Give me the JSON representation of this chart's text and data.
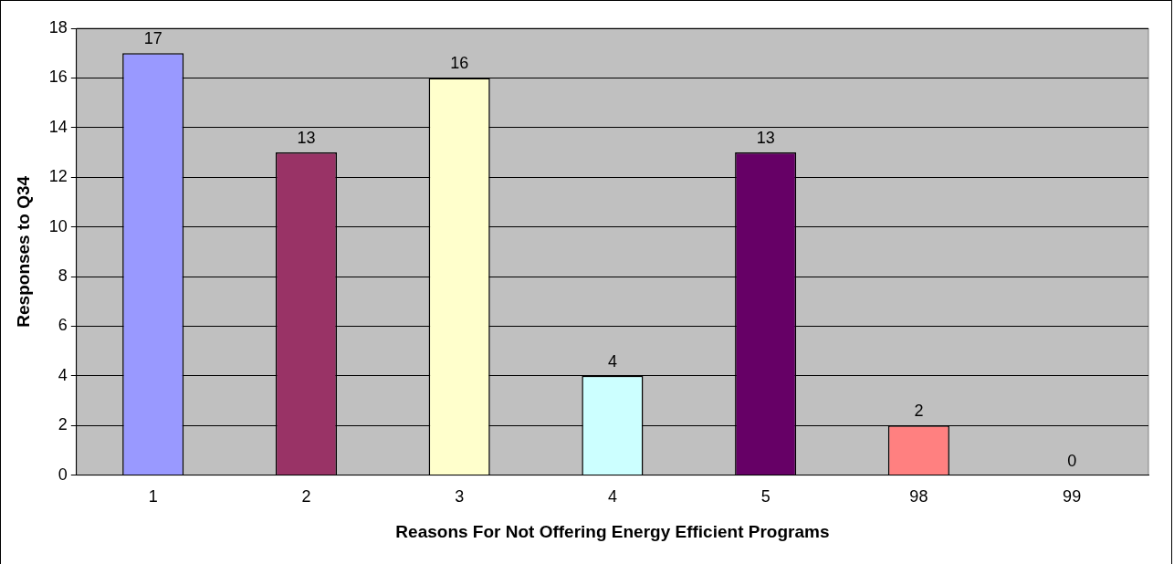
{
  "chart_data": {
    "type": "bar",
    "xlabel": "Reasons For Not Offering Energy Efficient Programs",
    "ylabel": "Responses to Q34",
    "categories": [
      "1",
      "2",
      "3",
      "4",
      "5",
      "98",
      "99"
    ],
    "values": [
      17,
      13,
      16,
      4,
      13,
      2,
      0
    ],
    "colors": [
      "#9999ff",
      "#993366",
      "#ffffcc",
      "#ccffff",
      "#660066",
      "#ff8080",
      "#0066cc"
    ],
    "ylim": [
      0,
      18
    ],
    "yticks": [
      0,
      2,
      4,
      6,
      8,
      10,
      12,
      14,
      16,
      18
    ],
    "grid": "y",
    "data_labels": true,
    "legend": false
  }
}
